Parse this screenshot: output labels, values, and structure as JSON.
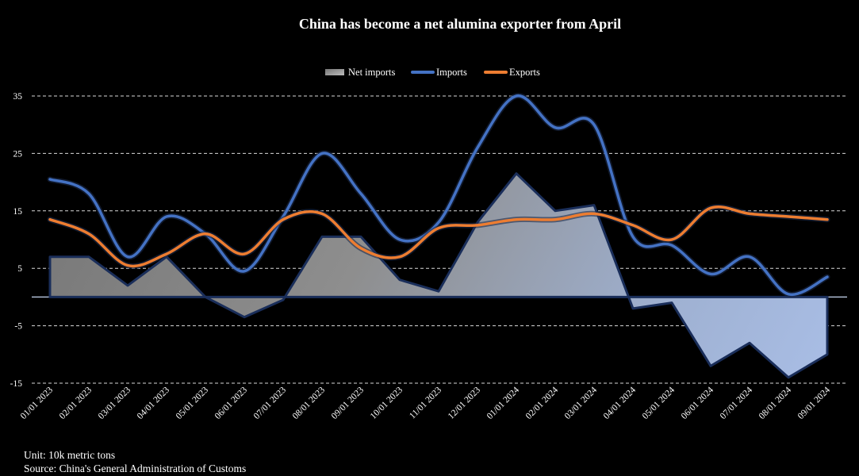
{
  "chart_data": {
    "type": "line",
    "title": "China has become a net alumina exporter from April",
    "xlabel": "",
    "ylabel": "",
    "categories": [
      "01/01 2023",
      "02/01 2023",
      "03/01 2023",
      "04/01 2023",
      "05/01 2023",
      "06/01 2023",
      "07/01 2023",
      "08/01 2023",
      "09/01 2023",
      "10/01 2023",
      "11/01 2023",
      "12/01 2023",
      "01/01 2024",
      "02/01 2024",
      "03/01 2024",
      "04/01 2024",
      "05/01 2024",
      "06/01 2024",
      "07/01 2024",
      "08/01 2024",
      "09/01 2024"
    ],
    "ylim": [
      -15,
      35
    ],
    "yticks": [
      35,
      25,
      15,
      5,
      -5,
      -15
    ],
    "grid": "horizontal dashed",
    "legend_position": "top",
    "series": [
      {
        "name": "Net imports",
        "kind": "area",
        "color": "#8a8a8a",
        "values": [
          7,
          7,
          2,
          7,
          0,
          -3.5,
          -0.5,
          10.5,
          10.5,
          3,
          1,
          13,
          21.5,
          15,
          16,
          -2,
          -1,
          -12,
          -8,
          -14,
          -10
        ]
      },
      {
        "name": "Imports",
        "kind": "line",
        "color": "#4472c4",
        "values": [
          20.5,
          18,
          7,
          14,
          11,
          4.5,
          14,
          25,
          18,
          10,
          13,
          26,
          35,
          29.5,
          30,
          10.5,
          9,
          4,
          7,
          0.5,
          3.5
        ]
      },
      {
        "name": "Exports",
        "kind": "line",
        "color": "#ed7d31",
        "values": [
          13.5,
          11,
          5.5,
          7.5,
          11,
          7.5,
          13.5,
          14.5,
          8.5,
          7,
          12,
          12.5,
          13.5,
          13.5,
          14.5,
          12.5,
          10,
          15.5,
          14.5,
          14,
          13.5
        ]
      }
    ]
  },
  "footer": {
    "unit": "Unit: 10k metric tons",
    "source": "Source: China's General Administration of Customs"
  }
}
